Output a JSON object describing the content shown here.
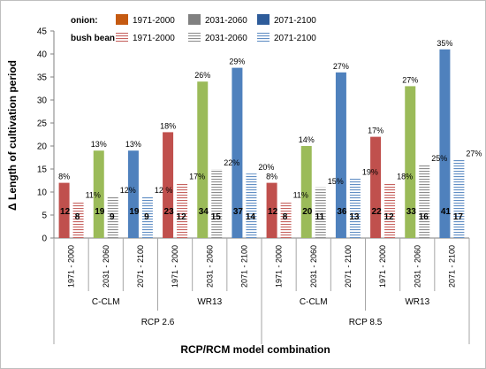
{
  "chart_data": {
    "type": "bar",
    "ylabel": "Δ Length of cultivation period",
    "xlabel": "RCP/RCM model combination",
    "ylim": [
      0,
      45
    ],
    "yticks": [
      0,
      5,
      10,
      15,
      20,
      25,
      30,
      35,
      40,
      45
    ],
    "grid": false,
    "legend": {
      "placement": "top-left",
      "groups": [
        {
          "label": "onion:",
          "items": [
            "1971-2000",
            "2031-2060",
            "2071-2100"
          ]
        },
        {
          "label": "bush bean:",
          "items": [
            "1971-2000",
            "2031-2060",
            "2071-2100"
          ]
        }
      ]
    },
    "colors": {
      "onion_1971_2000": "#c0504d",
      "onion_2031_2060": "#9bbb59",
      "onion_2071_2100": "#4f81bd",
      "bean_1971_2000": "#c0504d",
      "bean_2031_2060": "#808080",
      "bean_2071_2100": "#4f81bd",
      "legend_onion_1971_2000": "#c55a11",
      "legend_onion_2031_2060": "#808080",
      "legend_onion_2071_2100": "#2e5c9a"
    },
    "categories": [
      {
        "label": "1971 - 2000",
        "model": "C-CLM",
        "rcp": "RCP 2.6",
        "period": "p1",
        "onion": 12,
        "onion_pct": "8%",
        "bean": 8,
        "bean_pct": "11%"
      },
      {
        "label": "2031 - 2060",
        "model": "C-CLM",
        "rcp": "RCP 2.6",
        "period": "p2",
        "onion": 19,
        "onion_pct": "13%",
        "bean": 9,
        "bean_pct": "12%"
      },
      {
        "label": "2071 - 2100",
        "model": "C-CLM",
        "rcp": "RCP 2.6",
        "period": "p3",
        "onion": 19,
        "onion_pct": "13%",
        "bean": 9,
        "bean_pct": "12 %"
      },
      {
        "label": "1971 - 2000",
        "model": "WR13",
        "rcp": "RCP 2.6",
        "period": "p1",
        "onion": 23,
        "onion_pct": "18%",
        "bean": 12,
        "bean_pct": "17%"
      },
      {
        "label": "2031 - 2060",
        "model": "WR13",
        "rcp": "RCP 2.6",
        "period": "p2",
        "onion": 34,
        "onion_pct": "26%",
        "bean": 15,
        "bean_pct": "22%"
      },
      {
        "label": "2071 - 2100",
        "model": "WR13",
        "rcp": "RCP 2.6",
        "period": "p3",
        "onion": 37,
        "onion_pct": "29%",
        "bean": 14,
        "bean_pct": "20%"
      },
      {
        "label": "1971 - 2000",
        "model": "C-CLM",
        "rcp": "RCP 8.5",
        "period": "p1",
        "onion": 12,
        "onion_pct": "8%",
        "bean": 8,
        "bean_pct": "11%"
      },
      {
        "label": "2031 - 2060",
        "model": "C-CLM",
        "rcp": "RCP 8.5",
        "period": "p2",
        "onion": 20,
        "onion_pct": "14%",
        "bean": 11,
        "bean_pct": "15%"
      },
      {
        "label": "2071 - 2100",
        "model": "C-CLM",
        "rcp": "RCP 8.5",
        "period": "p3",
        "onion": 36,
        "onion_pct": "27%",
        "bean": 13,
        "bean_pct": "19%"
      },
      {
        "label": "1971 - 2000",
        "model": "WR13",
        "rcp": "RCP 8.5",
        "period": "p1",
        "onion": 22,
        "onion_pct": "17%",
        "bean": 12,
        "bean_pct": "18%"
      },
      {
        "label": "2031 - 2060",
        "model": "WR13",
        "rcp": "RCP 8.5",
        "period": "p2",
        "onion": 33,
        "onion_pct": "27%",
        "bean": 16,
        "bean_pct": "25%"
      },
      {
        "label": "2071 - 2100",
        "model": "WR13",
        "rcp": "RCP 8.5",
        "period": "p3",
        "onion": 41,
        "onion_pct": "35%",
        "bean": 17,
        "bean_pct": "27%"
      }
    ],
    "model_groups": [
      {
        "label": "C-CLM"
      },
      {
        "label": "WR13"
      },
      {
        "label": "C-CLM"
      },
      {
        "label": "WR13"
      }
    ],
    "rcp_groups": [
      {
        "label": "RCP 2.6"
      },
      {
        "label": "RCP 8.5"
      }
    ]
  }
}
